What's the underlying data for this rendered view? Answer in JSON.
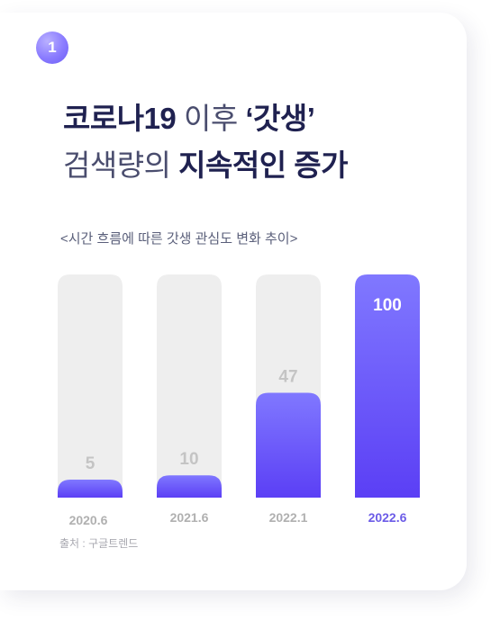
{
  "badge": "1",
  "title": {
    "line1_bold": "코로나19",
    "line1_light": " 이후 ",
    "line1_quote": "‘갓생’",
    "line2_light": "검색량의 ",
    "line2_bold": "지속적인 증가"
  },
  "chart_data": {
    "type": "bar",
    "title": "<시간 흐름에 따른 갓생 관심도 변화 추이>",
    "categories": [
      "2020.6",
      "2021.6",
      "2022.1",
      "2022.6"
    ],
    "values": [
      5,
      10,
      47,
      100
    ],
    "ylim": [
      0,
      100
    ],
    "xlabel": "",
    "ylabel": "",
    "grid": false,
    "legend": "none",
    "highlight_index": 3
  },
  "source": "출처 : 구글트렌드",
  "colors": {
    "bar_top": "#8078ff",
    "bar_bottom": "#5b3ff5",
    "track": "#eeeeee",
    "label_muted": "#c4c4c4",
    "label_highlight": "#ffffff",
    "xlabel_muted": "#b0b0b0",
    "xlabel_highlight": "#6c5ce7"
  }
}
